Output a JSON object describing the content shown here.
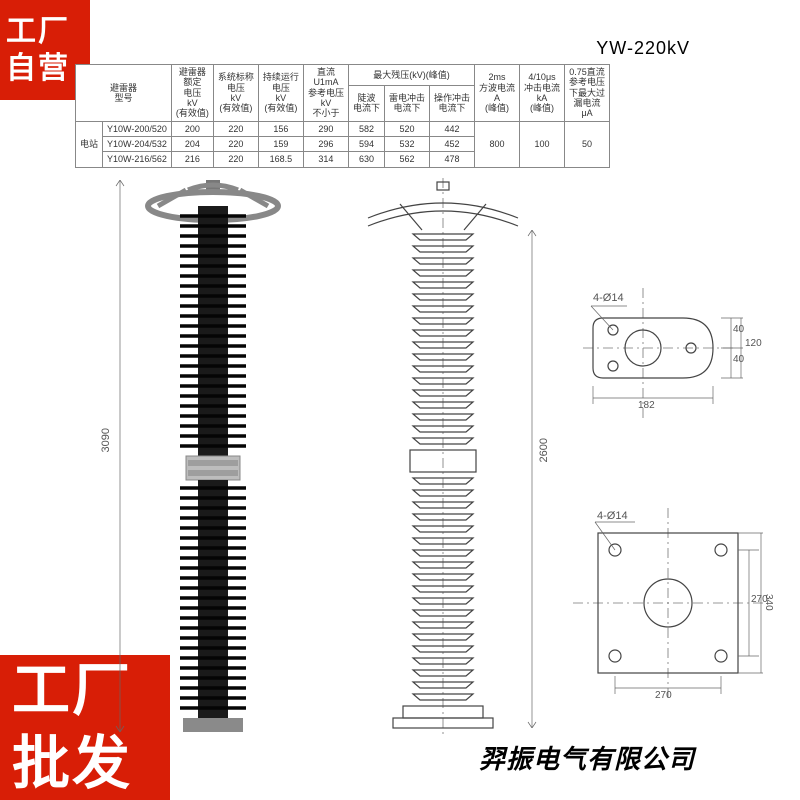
{
  "badges": {
    "top": {
      "line1": "工厂",
      "line2": "自营",
      "bg": "#d81e06"
    },
    "bottom": {
      "line1": "工厂",
      "line2": "批发",
      "bg": "#d81e06"
    }
  },
  "title": "YW-220kV",
  "table": {
    "headers_row1": [
      "避雷器\n型号",
      "避雷器\n额定\n电压\nkV\n(有效值)",
      "系统标称\n电压\nkV\n(有效值)",
      "持续运行\n电压\nkV\n(有效值)",
      "直流\nU1mA\n参考电压\nkV\n不小于",
      "最大残压(kV)(峰值)",
      "2ms\n方波电流\nA\n(峰值)",
      "4/10μs\n冲击电流\nkA\n(峰值)",
      "0.75直流\n参考电压\n下最大过\n漏电流\nμA"
    ],
    "headers_row2": [
      "陡波\n电流下",
      "雷电冲击\n电流下",
      "操作冲击\n电流下"
    ],
    "group_label": "电站",
    "rows": [
      {
        "model": "Y10W-200/520",
        "cells": [
          "200",
          "220",
          "156",
          "290",
          "582",
          "520",
          "442",
          "800",
          "100",
          "50"
        ]
      },
      {
        "model": "Y10W-204/532",
        "cells": [
          "204",
          "220",
          "159",
          "296",
          "594",
          "532",
          "452",
          "",
          "",
          ""
        ]
      },
      {
        "model": "Y10W-216/562",
        "cells": [
          "216",
          "220",
          "168.5",
          "314",
          "630",
          "562",
          "478",
          "",
          "",
          ""
        ]
      }
    ],
    "colors": {
      "border": "#888888",
      "text": "#333333"
    }
  },
  "drawing": {
    "overall_height": "3090",
    "body_height": "2600",
    "flange_top": {
      "hole_note": "4-Ø14",
      "dim_a": "40",
      "dim_b": "40",
      "dim_c": "120",
      "dim_w": "182"
    },
    "flange_bottom": {
      "hole_note": "4-Ø14",
      "dim_inner": "270",
      "dim_outer": "340",
      "dim_w": "270"
    },
    "colors": {
      "outline": "#444444",
      "dash": "#777777",
      "text": "#555555"
    }
  },
  "company": "羿振电气有限公司"
}
